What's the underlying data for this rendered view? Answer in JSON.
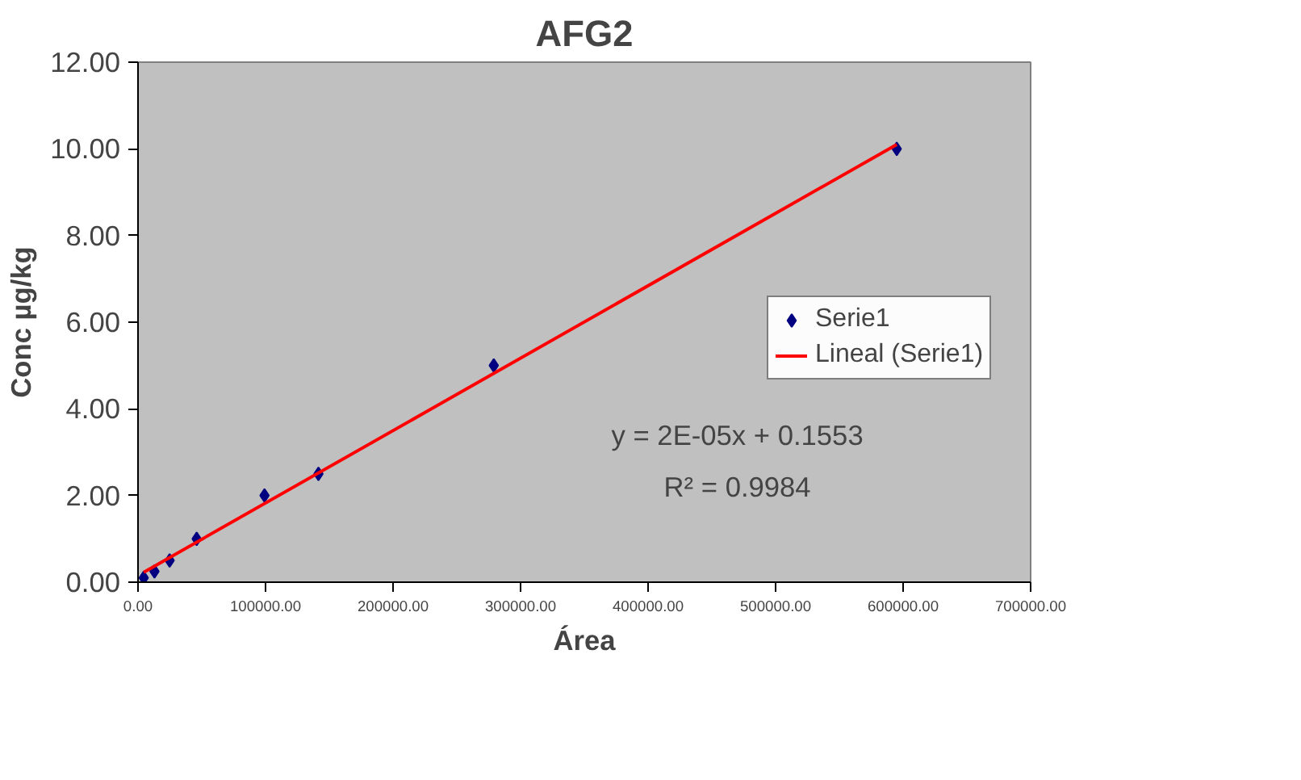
{
  "chart_data": {
    "type": "scatter",
    "title": "AFG2",
    "xlabel": "Área",
    "ylabel": "Conc µg/kg",
    "x": [
      4500,
      12900,
      24800,
      46000,
      99200,
      141500,
      279000,
      595000
    ],
    "series": [
      {
        "name": "Serie1",
        "color": "#000080",
        "values": [
          0.1,
          0.25,
          0.5,
          1.0,
          2.0,
          2.5,
          5.0,
          10.0
        ],
        "marker": "diamond"
      },
      {
        "name": "Lineal (Serie1)",
        "type": "line",
        "color": "#ff0000",
        "x": [
          4500,
          595000
        ],
        "values": [
          0.23,
          10.1
        ],
        "marker": "none",
        "line_style": "solid"
      }
    ],
    "xlim": [
      0,
      700000
    ],
    "ylim": [
      0,
      12
    ],
    "xticks": [
      {
        "value": 0,
        "label": "0.00"
      },
      {
        "value": 100000,
        "label": "100000.00"
      },
      {
        "value": 200000,
        "label": "200000.00"
      },
      {
        "value": 300000,
        "label": "300000.00"
      },
      {
        "value": 400000,
        "label": "400000.00"
      },
      {
        "value": 500000,
        "label": "500000.00"
      },
      {
        "value": 600000,
        "label": "600000.00"
      },
      {
        "value": 700000,
        "label": "700000.00"
      }
    ],
    "yticks": [
      {
        "value": 0,
        "label": "0.00"
      },
      {
        "value": 2,
        "label": "2.00"
      },
      {
        "value": 4,
        "label": "4.00"
      },
      {
        "value": 6,
        "label": "6.00"
      },
      {
        "value": 8,
        "label": "8.00"
      },
      {
        "value": 10,
        "label": "10.00"
      },
      {
        "value": 12,
        "label": "12.00"
      }
    ],
    "annotations": [
      "y = 2E-05x + 0.1553",
      "R² = 0.9984"
    ],
    "grid": false,
    "legend": "right"
  }
}
